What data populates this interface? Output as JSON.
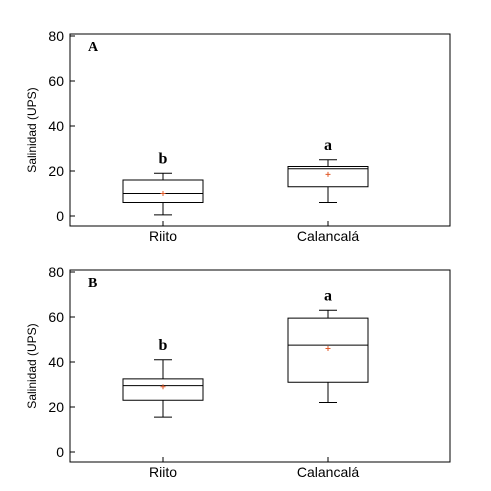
{
  "colors": {
    "mean_marker": "#e05a2a",
    "stroke": "#000000"
  },
  "chart_data": [
    {
      "type": "box",
      "panel_label": "A",
      "ylabel": "Salinidad (UPS)",
      "ylim": [
        0,
        80
      ],
      "yticks": [
        "0",
        "20",
        "40",
        "60",
        "80"
      ],
      "categories": [
        "Riito",
        "Calancalá"
      ],
      "boxes": [
        {
          "category": "Riito",
          "min": 0.5,
          "q1": 6,
          "median": 10,
          "q3": 16,
          "max": 19,
          "mean": 10,
          "group_letter": "b"
        },
        {
          "category": "Calancalá",
          "min": 6,
          "q1": 13,
          "median": 21,
          "q3": 22,
          "max": 25,
          "mean": 18.5,
          "group_letter": "a"
        }
      ]
    },
    {
      "type": "box",
      "panel_label": "B",
      "ylabel": "Salinidad (UPS)",
      "ylim": [
        0,
        80
      ],
      "yticks": [
        "0",
        "20",
        "40",
        "60",
        "80"
      ],
      "categories": [
        "Riito",
        "Calancalá"
      ],
      "boxes": [
        {
          "category": "Riito",
          "min": 15.5,
          "q1": 23,
          "median": 29.5,
          "q3": 32.5,
          "max": 41,
          "mean": 29,
          "group_letter": "b"
        },
        {
          "category": "Calancalá",
          "min": 22,
          "q1": 31,
          "median": 47.5,
          "q3": 59.5,
          "max": 63,
          "mean": 46,
          "group_letter": "a"
        }
      ]
    }
  ]
}
